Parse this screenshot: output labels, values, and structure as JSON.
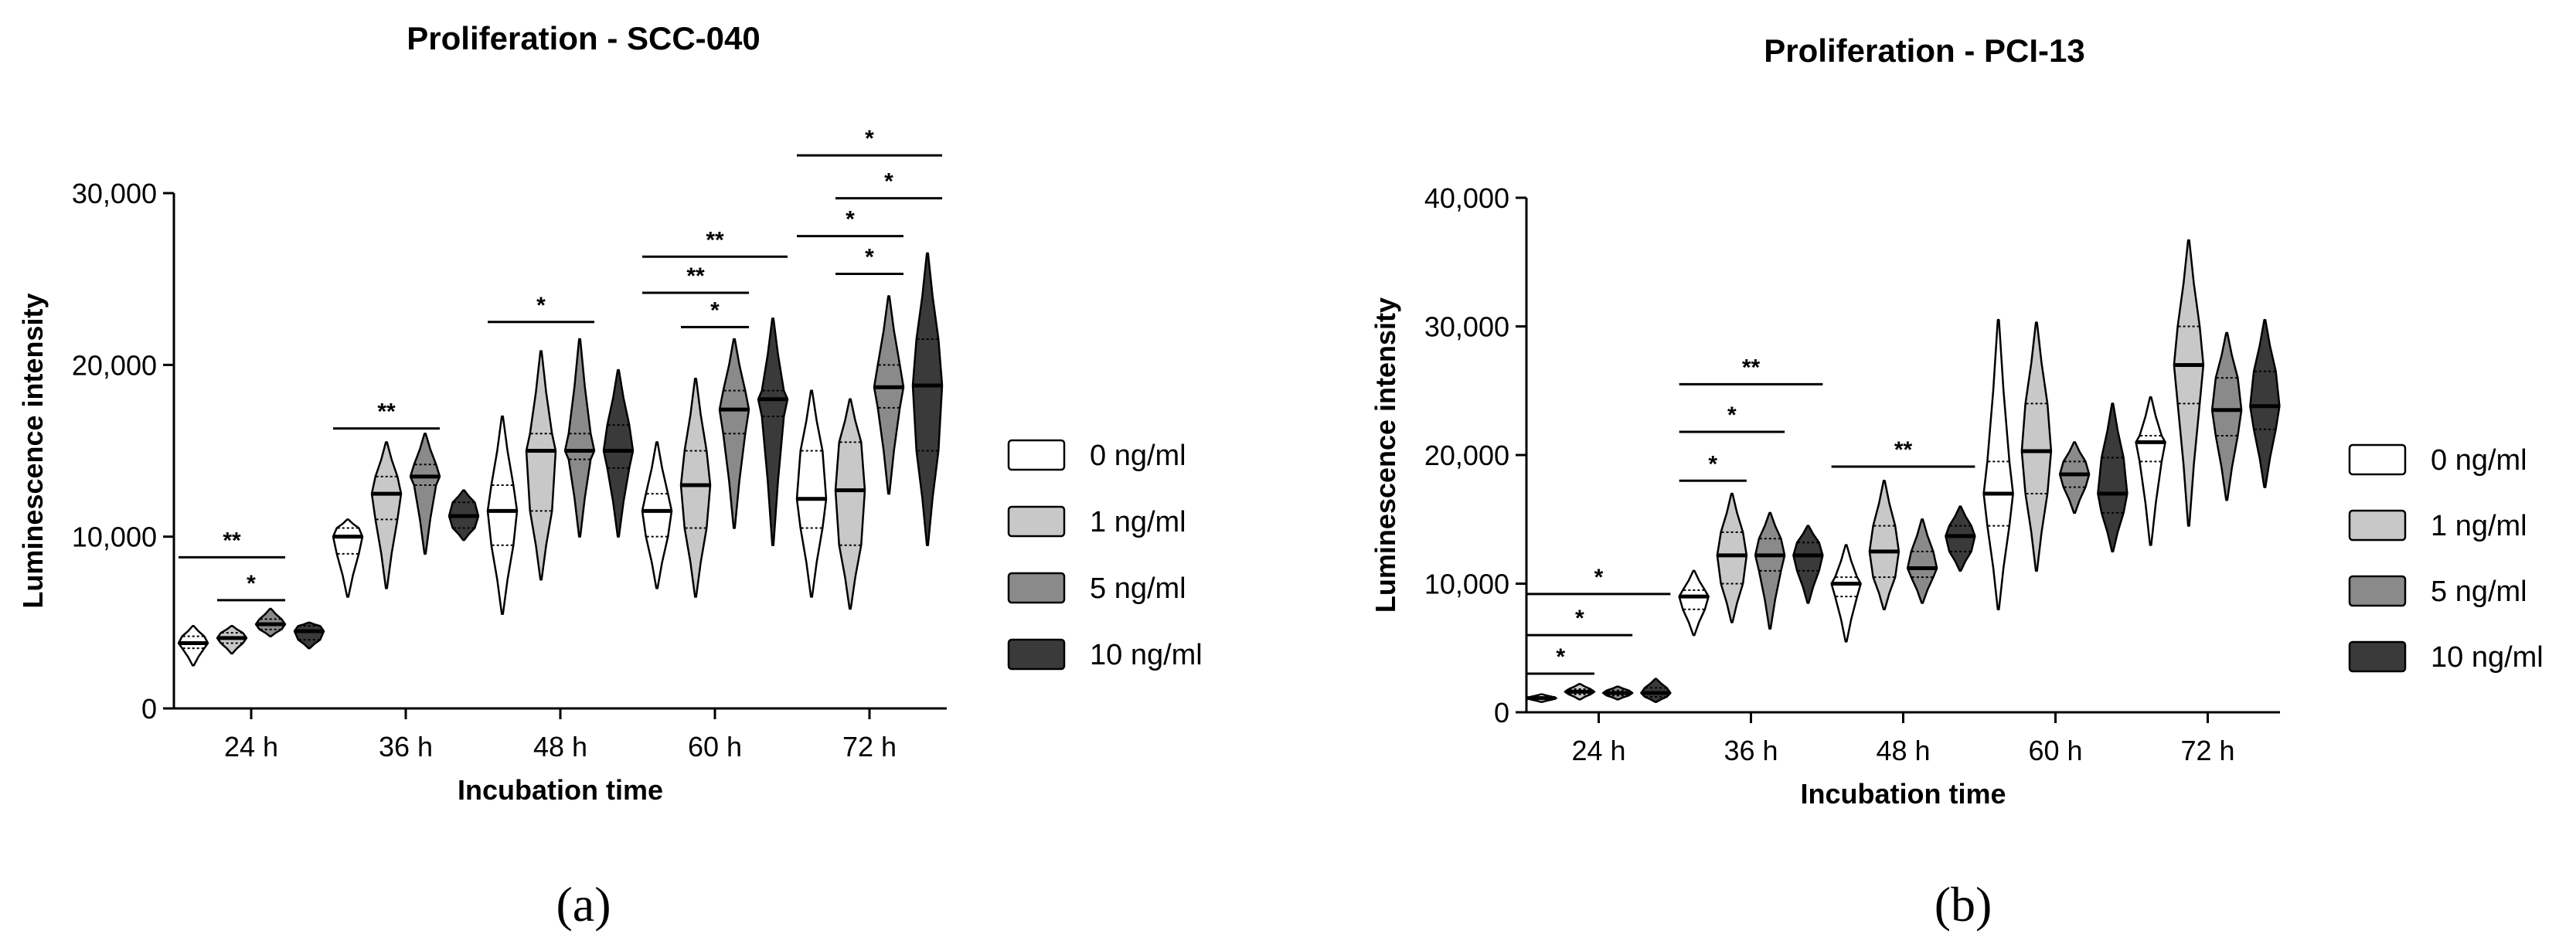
{
  "chart_data": [
    {
      "type": "violin",
      "panel": "(a)",
      "title": "Proliferation - SCC-040",
      "xlabel": "Incubation time",
      "ylabel": "Luminescence intensity",
      "ylim": [
        0,
        30000
      ],
      "yticks": [
        0,
        10000,
        20000,
        30000
      ],
      "ytick_labels": [
        "0",
        "10,000",
        "20,000",
        "30,000"
      ],
      "categories": [
        "24 h",
        "36 h",
        "48 h",
        "60 h",
        "72 h"
      ],
      "legend_position": "right",
      "series": [
        {
          "name": "0 ng/ml",
          "color": "#ffffff",
          "median": [
            3800,
            10000,
            11500,
            11500,
            12200
          ],
          "q1": [
            3500,
            9000,
            9500,
            10000,
            10500
          ],
          "q3": [
            4200,
            10500,
            13000,
            12500,
            15000
          ],
          "min": [
            2500,
            6500,
            5500,
            7000,
            6500
          ],
          "max": [
            4800,
            11000,
            17000,
            15500,
            18500
          ]
        },
        {
          "name": "1 ng/ml",
          "color": "#c8c8c8",
          "median": [
            4100,
            12500,
            15000,
            13000,
            12700
          ],
          "q1": [
            3800,
            11000,
            11500,
            10500,
            9500
          ],
          "q3": [
            4400,
            13500,
            16000,
            15000,
            15500
          ],
          "min": [
            3200,
            7000,
            7500,
            6500,
            5800
          ],
          "max": [
            4800,
            15500,
            20800,
            19200,
            18000
          ]
        },
        {
          "name": "5 ng/ml",
          "color": "#8a8a8a",
          "median": [
            4900,
            13500,
            15000,
            17400,
            18700
          ],
          "q1": [
            4600,
            13000,
            14500,
            16000,
            17500
          ],
          "q3": [
            5200,
            14200,
            16000,
            18500,
            20000
          ],
          "min": [
            4200,
            9000,
            10000,
            10500,
            12500
          ],
          "max": [
            5800,
            16000,
            21500,
            21500,
            24000
          ]
        },
        {
          "name": "10 ng/ml",
          "color": "#3a3a3a",
          "median": [
            4500,
            11200,
            15000,
            18000,
            18800
          ],
          "q1": [
            4000,
            10500,
            14000,
            17000,
            15000
          ],
          "q3": [
            4800,
            12000,
            16500,
            18500,
            21500
          ],
          "min": [
            3500,
            9800,
            10000,
            9500,
            9500
          ],
          "max": [
            5000,
            12700,
            19700,
            22700,
            26500
          ]
        }
      ],
      "significance": [
        {
          "label": "**",
          "category": "24 h",
          "from_series": 0,
          "to_series": 2,
          "y": 8800
        },
        {
          "label": "*",
          "category": "24 h",
          "from_series": 1,
          "to_series": 2,
          "y": 6300
        },
        {
          "label": "**",
          "category": "36 h",
          "from_series": 0,
          "to_series": 2,
          "y": 16300
        },
        {
          "label": "*",
          "category": "48 h",
          "from_series": 0,
          "to_series": 2,
          "y": 22500
        },
        {
          "label": "**",
          "category": "60 h",
          "from_series": 0,
          "to_series": 3,
          "y": 26300
        },
        {
          "label": "**",
          "category": "60 h",
          "from_series": 0,
          "to_series": 2,
          "y": 24200
        },
        {
          "label": "*",
          "category": "60 h",
          "from_series": 1,
          "to_series": 2,
          "y": 22200
        },
        {
          "label": "*",
          "category": "72 h",
          "from_series": 0,
          "to_series": 3,
          "y": 32200
        },
        {
          "label": "*",
          "category": "72 h",
          "from_series": 1,
          "to_series": 3,
          "y": 29700
        },
        {
          "label": "*",
          "category": "72 h",
          "from_series": 0,
          "to_series": 2,
          "y": 27500
        },
        {
          "label": "*",
          "category": "72 h",
          "from_series": 1,
          "to_series": 2,
          "y": 25300
        }
      ]
    },
    {
      "type": "violin",
      "panel": "(b)",
      "title": "Proliferation - PCI-13",
      "xlabel": "Incubation time",
      "ylabel": "Luminescence intensity",
      "ylim": [
        0,
        40000
      ],
      "yticks": [
        0,
        10000,
        20000,
        30000,
        40000
      ],
      "ytick_labels": [
        "0",
        "10,000",
        "20,000",
        "30,000",
        "40,000"
      ],
      "categories": [
        "24 h",
        "36 h",
        "48 h",
        "60 h",
        "72 h"
      ],
      "legend_position": "right",
      "series": [
        {
          "name": "0 ng/ml",
          "color": "#ffffff",
          "median": [
            1100,
            9000,
            10000,
            17000,
            21000
          ],
          "q1": [
            1000,
            8000,
            9000,
            14500,
            19500
          ],
          "q3": [
            1200,
            9500,
            10500,
            19500,
            21500
          ],
          "min": [
            800,
            6000,
            5500,
            8000,
            13000
          ],
          "max": [
            1400,
            11000,
            13000,
            30500,
            24500
          ]
        },
        {
          "name": "1 ng/ml",
          "color": "#c8c8c8",
          "median": [
            1600,
            12200,
            12500,
            20300,
            27000
          ],
          "q1": [
            1400,
            10000,
            10500,
            17000,
            24000
          ],
          "q3": [
            1800,
            14000,
            14500,
            24000,
            30000
          ],
          "min": [
            1000,
            7000,
            8000,
            11000,
            14500
          ],
          "max": [
            2200,
            17000,
            18000,
            30300,
            36700
          ]
        },
        {
          "name": "5 ng/ml",
          "color": "#8a8a8a",
          "median": [
            1500,
            12200,
            11200,
            18500,
            23500
          ],
          "q1": [
            1300,
            11000,
            10500,
            17500,
            21500
          ],
          "q3": [
            1700,
            13500,
            12500,
            19500,
            26000
          ],
          "min": [
            1000,
            6500,
            8500,
            15500,
            16500
          ],
          "max": [
            2000,
            15500,
            15000,
            21000,
            29500
          ]
        },
        {
          "name": "10 ng/ml",
          "color": "#3a3a3a",
          "median": [
            1500,
            12200,
            13700,
            17000,
            23800
          ],
          "q1": [
            1200,
            11000,
            12500,
            15500,
            22000
          ],
          "q3": [
            1900,
            13200,
            14500,
            19800,
            26500
          ],
          "min": [
            800,
            8500,
            11000,
            12500,
            17500
          ],
          "max": [
            2600,
            14500,
            16000,
            24000,
            30500
          ]
        }
      ],
      "significance": [
        {
          "label": "*",
          "category": "24 h",
          "from_series": 0,
          "to_series": 1,
          "y": 3000
        },
        {
          "label": "*",
          "category": "24 h",
          "from_series": 0,
          "to_series": 2,
          "y": 6000
        },
        {
          "label": "*",
          "category": "24 h",
          "from_series": 0,
          "to_series": 3,
          "y": 9200
        },
        {
          "label": "*",
          "category": "36 h",
          "from_series": 0,
          "to_series": 1,
          "y": 18000
        },
        {
          "label": "*",
          "category": "36 h",
          "from_series": 0,
          "to_series": 2,
          "y": 21800
        },
        {
          "label": "**",
          "category": "36 h",
          "from_series": 0,
          "to_series": 3,
          "y": 25500
        },
        {
          "label": "**",
          "category": "48 h",
          "from_series": 0,
          "to_series": 3,
          "y": 19100
        }
      ]
    }
  ]
}
